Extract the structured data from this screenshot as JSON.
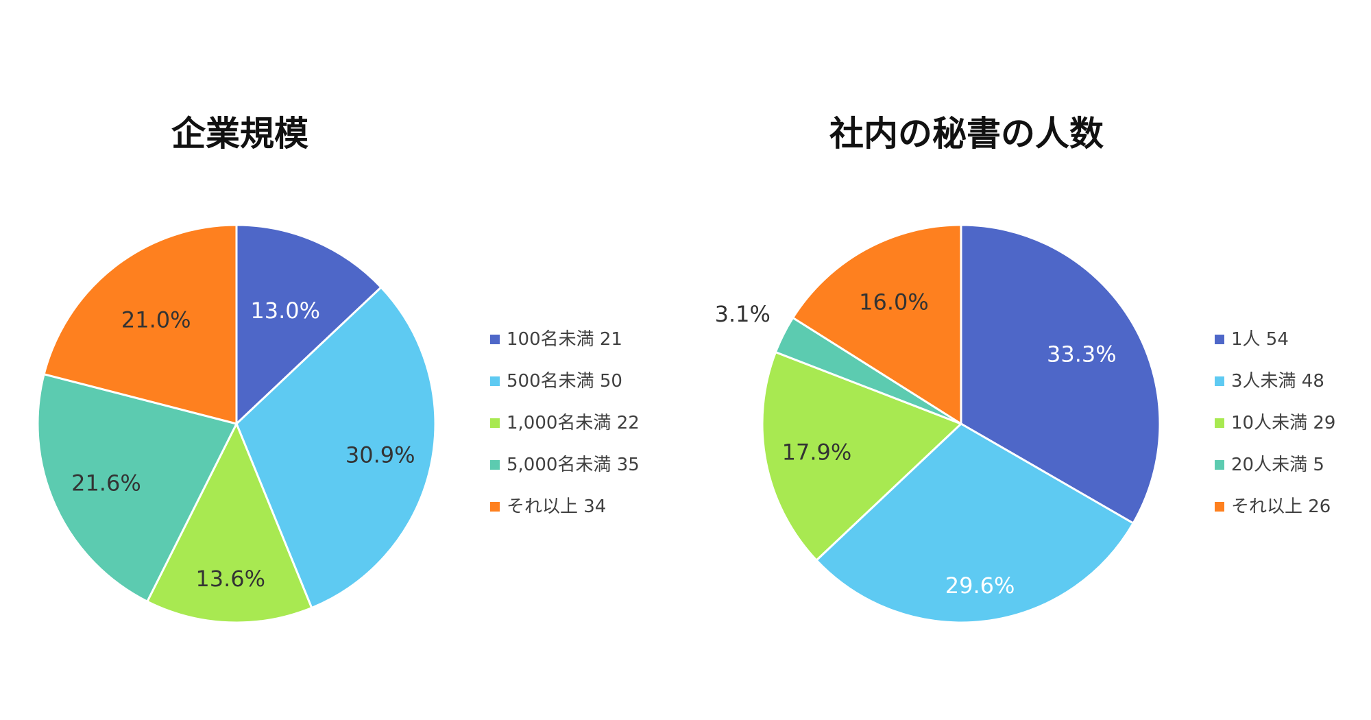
{
  "chart_data": [
    {
      "type": "pie",
      "title": "企業規模",
      "categories": [
        "100名未満",
        "500名未満",
        "1,000名未満",
        "5,000名未満",
        "それ以上"
      ],
      "values": [
        21,
        50,
        22,
        35,
        34
      ],
      "percent_labels": [
        "13.0%",
        "30.9%",
        "13.6%",
        "21.6%",
        "21.0%"
      ],
      "legend_labels": [
        "100名未満 21",
        "500名未満 50",
        "1,000名未満 22",
        "5,000名未満 35",
        "それ以上 34"
      ],
      "colors": [
        "#4e67c8",
        "#5ecaf2",
        "#a8e951",
        "#5ccbb0",
        "#fe801f"
      ],
      "label_colors": [
        "#ffffff",
        "#333333",
        "#333333",
        "#333333",
        "#333333"
      ],
      "legend_position": "right"
    },
    {
      "type": "pie",
      "title": "社内の秘書の人数",
      "categories": [
        "1人",
        "3人未満",
        "10人未満",
        "20人未満",
        "それ以上"
      ],
      "values": [
        54,
        48,
        29,
        5,
        26
      ],
      "percent_labels": [
        "33.3%",
        "29.6%",
        "17.9%",
        "3.1%",
        "16.0%"
      ],
      "legend_labels": [
        "1人 54",
        "3人未満 48",
        "10人未満 29",
        "20人未満 5",
        "それ以上 26"
      ],
      "colors": [
        "#4e67c8",
        "#5ecaf2",
        "#a8e951",
        "#5ccbb0",
        "#fe801f"
      ],
      "label_colors": [
        "#ffffff",
        "#ffffff",
        "#333333",
        "#333333",
        "#333333"
      ],
      "legend_position": "right"
    }
  ]
}
